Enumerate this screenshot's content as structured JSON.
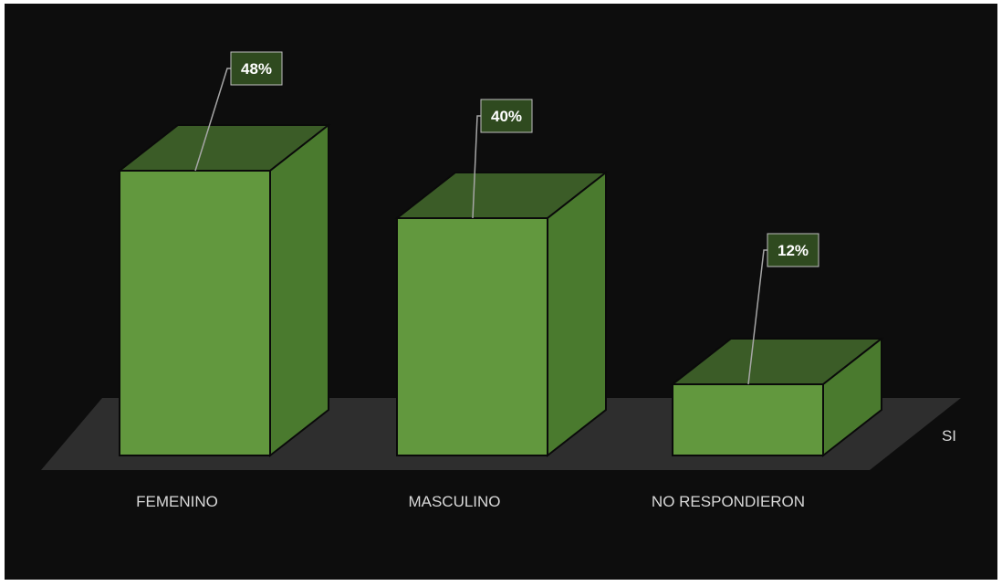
{
  "chart_data": {
    "type": "bar",
    "categories": [
      "FEMENINO",
      "MASCULINO",
      "NO RESPONDIERON"
    ],
    "series": [
      {
        "name": "SI",
        "values": [
          48,
          40,
          12
        ]
      }
    ],
    "data_labels": [
      "48%",
      "40%",
      "12%"
    ],
    "ylim": [
      0,
      48
    ],
    "grid": false,
    "legend": "right",
    "colors": {
      "background": "#0d0d0d",
      "floor": "#2e2e2e",
      "bar_front": "#62983e",
      "bar_side": "#4a7a2e",
      "bar_top": "#3b5c27",
      "label_box": "#2f4a1f",
      "leader_line": "#a6a6a6",
      "text": "#d9d9d9"
    }
  }
}
